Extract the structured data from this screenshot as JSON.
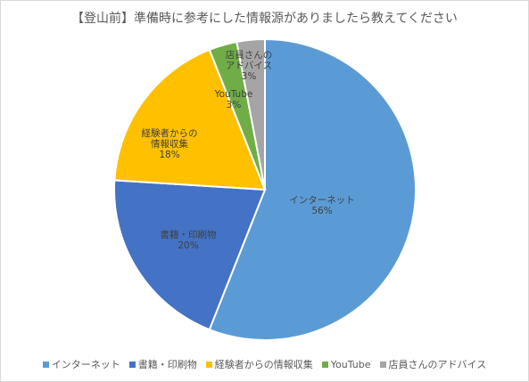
{
  "chart_data": {
    "type": "pie",
    "title": "【登山前】準備時に参考にした情報源がありましたら教えてください",
    "categories": [
      "インターネット",
      "書籍・印刷物",
      "経験者からの情報収集",
      "YouTube",
      "店員さんのアドバイス"
    ],
    "values": [
      56,
      20,
      18,
      3,
      3
    ],
    "colors": [
      "#5b9bd5",
      "#4472c4",
      "#ffc000",
      "#70ad47",
      "#a5a5a5"
    ],
    "slice_labels": [
      {
        "lines": [
          "インターネット"
        ],
        "percent": "56%"
      },
      {
        "lines": [
          "書籍・印刷物"
        ],
        "percent": "20%"
      },
      {
        "lines": [
          "経験者からの",
          "情報収集"
        ],
        "percent": "18%"
      },
      {
        "lines": [
          "YouTube"
        ],
        "percent": "3%"
      },
      {
        "lines": [
          "店員さんの",
          "アドバイス"
        ],
        "percent": "3%"
      }
    ],
    "legend_position": "bottom"
  }
}
